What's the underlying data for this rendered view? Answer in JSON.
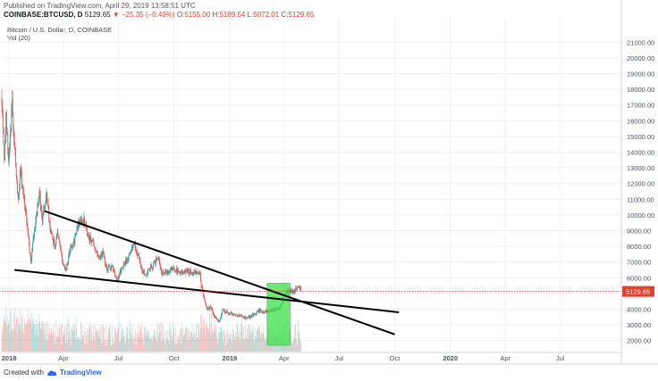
{
  "header": {
    "published": "Published on TradingView.com, April 29, 2019 13:58:51 UTC",
    "symbol": "COINBASE:BTCUSD, D",
    "last": "5129.65",
    "change": "▼ −25.35 (−0.49%)",
    "o_label": "O:",
    "o": "5155.00",
    "h_label": "H:",
    "h": "5189.54",
    "l_label": "L:",
    "l": "5072.01",
    "c_label": "C:",
    "c": "5129.65",
    "legend_title": "Bitcoin / U.S. Dollar, D, COINBASE",
    "legend_vol": "Vol (20)"
  },
  "footer": {
    "created": "Created with",
    "brand": "TradingView",
    "icon": "tradingview-cloud-icon"
  },
  "colors": {
    "up": "#26a69a",
    "down": "#ef5350",
    "highlight": "#3fe04a",
    "trendline": "#000000",
    "price_line": "#e0402e",
    "price_label_bg": "#e0402e"
  },
  "chart_data": {
    "type": "candlestick",
    "title": "Bitcoin / U.S. Dollar, D, COINBASE",
    "y_ticks": [
      2000,
      3000,
      4000,
      5000,
      6000,
      7000,
      8000,
      9000,
      10000,
      11000,
      12000,
      13000,
      14000,
      15000,
      16000,
      17000,
      18000,
      19000,
      20000,
      21000
    ],
    "y_tick_labels": [
      "2000.00",
      "3000.00",
      "4000.00",
      "5000.00",
      "6000.00",
      "7000.00",
      "8000.00",
      "9000.00",
      "10000.00",
      "11000.00",
      "12000.00",
      "13000.00",
      "14000.00",
      "15000.00",
      "16000.00",
      "17000.00",
      "18000.00",
      "19000.00",
      "20000.00",
      "21000.00"
    ],
    "ylim": [
      1300,
      22100
    ],
    "x_range": [
      "2017-12-20",
      "2020-10-10"
    ],
    "x_ticks": [
      {
        "date": "2018-01-01",
        "label": "2018"
      },
      {
        "date": "2018-04-01",
        "label": "Apr"
      },
      {
        "date": "2018-07-01",
        "label": "Jul"
      },
      {
        "date": "2018-10-01",
        "label": "Oct"
      },
      {
        "date": "2019-01-01",
        "label": "2019"
      },
      {
        "date": "2019-04-01",
        "label": "Apr"
      },
      {
        "date": "2019-07-01",
        "label": "Jul"
      },
      {
        "date": "2019-10-01",
        "label": "Oct"
      },
      {
        "date": "2020-01-01",
        "label": "2020"
      },
      {
        "date": "2020-04-01",
        "label": "Apr"
      },
      {
        "date": "2020-07-01",
        "label": "Jul"
      }
    ],
    "last_price": 5129.65,
    "last_price_label": "5129.65",
    "price_path": [
      [
        "2017-12-20",
        17500
      ],
      [
        "2017-12-24",
        13800
      ],
      [
        "2017-12-27",
        16200
      ],
      [
        "2017-12-31",
        13500
      ],
      [
        "2018-01-03",
        15000
      ],
      [
        "2018-01-06",
        17100
      ],
      [
        "2018-01-10",
        14500
      ],
      [
        "2018-01-16",
        11000
      ],
      [
        "2018-01-20",
        12800
      ],
      [
        "2018-01-26",
        11000
      ],
      [
        "2018-02-01",
        9100
      ],
      [
        "2018-02-06",
        6900
      ],
      [
        "2018-02-10",
        8500
      ],
      [
        "2018-02-16",
        10200
      ],
      [
        "2018-02-20",
        11400
      ],
      [
        "2018-02-25",
        9600
      ],
      [
        "2018-03-04",
        11400
      ],
      [
        "2018-03-10",
        9000
      ],
      [
        "2018-03-18",
        8000
      ],
      [
        "2018-03-22",
        8900
      ],
      [
        "2018-03-31",
        6900
      ],
      [
        "2018-04-06",
        6600
      ],
      [
        "2018-04-12",
        7900
      ],
      [
        "2018-04-18",
        8200
      ],
      [
        "2018-04-25",
        9400
      ],
      [
        "2018-05-05",
        9700
      ],
      [
        "2018-05-12",
        8600
      ],
      [
        "2018-05-20",
        8300
      ],
      [
        "2018-05-28",
        7300
      ],
      [
        "2018-06-05",
        7600
      ],
      [
        "2018-06-12",
        6500
      ],
      [
        "2018-06-20",
        6700
      ],
      [
        "2018-06-29",
        5900
      ],
      [
        "2018-07-08",
        6700
      ],
      [
        "2018-07-18",
        7300
      ],
      [
        "2018-07-26",
        8200
      ],
      [
        "2018-08-01",
        7600
      ],
      [
        "2018-08-10",
        6300
      ],
      [
        "2018-08-15",
        6300
      ],
      [
        "2018-08-25",
        6700
      ],
      [
        "2018-09-05",
        7300
      ],
      [
        "2018-09-10",
        6300
      ],
      [
        "2018-09-20",
        6400
      ],
      [
        "2018-10-01",
        6600
      ],
      [
        "2018-10-11",
        6250
      ],
      [
        "2018-10-20",
        6450
      ],
      [
        "2018-11-01",
        6350
      ],
      [
        "2018-11-13",
        6350
      ],
      [
        "2018-11-15",
        5600
      ],
      [
        "2018-11-20",
        4600
      ],
      [
        "2018-11-25",
        3900
      ],
      [
        "2018-11-30",
        4200
      ],
      [
        "2018-12-07",
        3500
      ],
      [
        "2018-12-15",
        3200
      ],
      [
        "2018-12-20",
        3900
      ],
      [
        "2018-12-25",
        3800
      ],
      [
        "2019-01-01",
        3750
      ],
      [
        "2019-01-10",
        3650
      ],
      [
        "2019-01-20",
        3550
      ],
      [
        "2019-01-30",
        3450
      ],
      [
        "2019-02-08",
        3600
      ],
      [
        "2019-02-18",
        3900
      ],
      [
        "2019-02-25",
        3800
      ],
      [
        "2019-03-05",
        3850
      ],
      [
        "2019-03-15",
        3950
      ],
      [
        "2019-03-25",
        4000
      ],
      [
        "2019-04-02",
        4900
      ],
      [
        "2019-04-08",
        5200
      ],
      [
        "2019-04-15",
        5050
      ],
      [
        "2019-04-20",
        5300
      ],
      [
        "2019-04-25",
        5450
      ],
      [
        "2019-04-29",
        5130
      ]
    ],
    "trendlines": [
      {
        "from": [
          "2018-03-01",
          10250
        ],
        "to": [
          "2019-10-01",
          2400
        ]
      },
      {
        "from": [
          "2018-01-10",
          6500
        ],
        "to": [
          "2019-10-08",
          3800
        ]
      }
    ],
    "highlight_box": {
      "x0": "2019-03-04",
      "x1": "2019-04-11",
      "y0": 1700,
      "y1": 5650
    }
  }
}
